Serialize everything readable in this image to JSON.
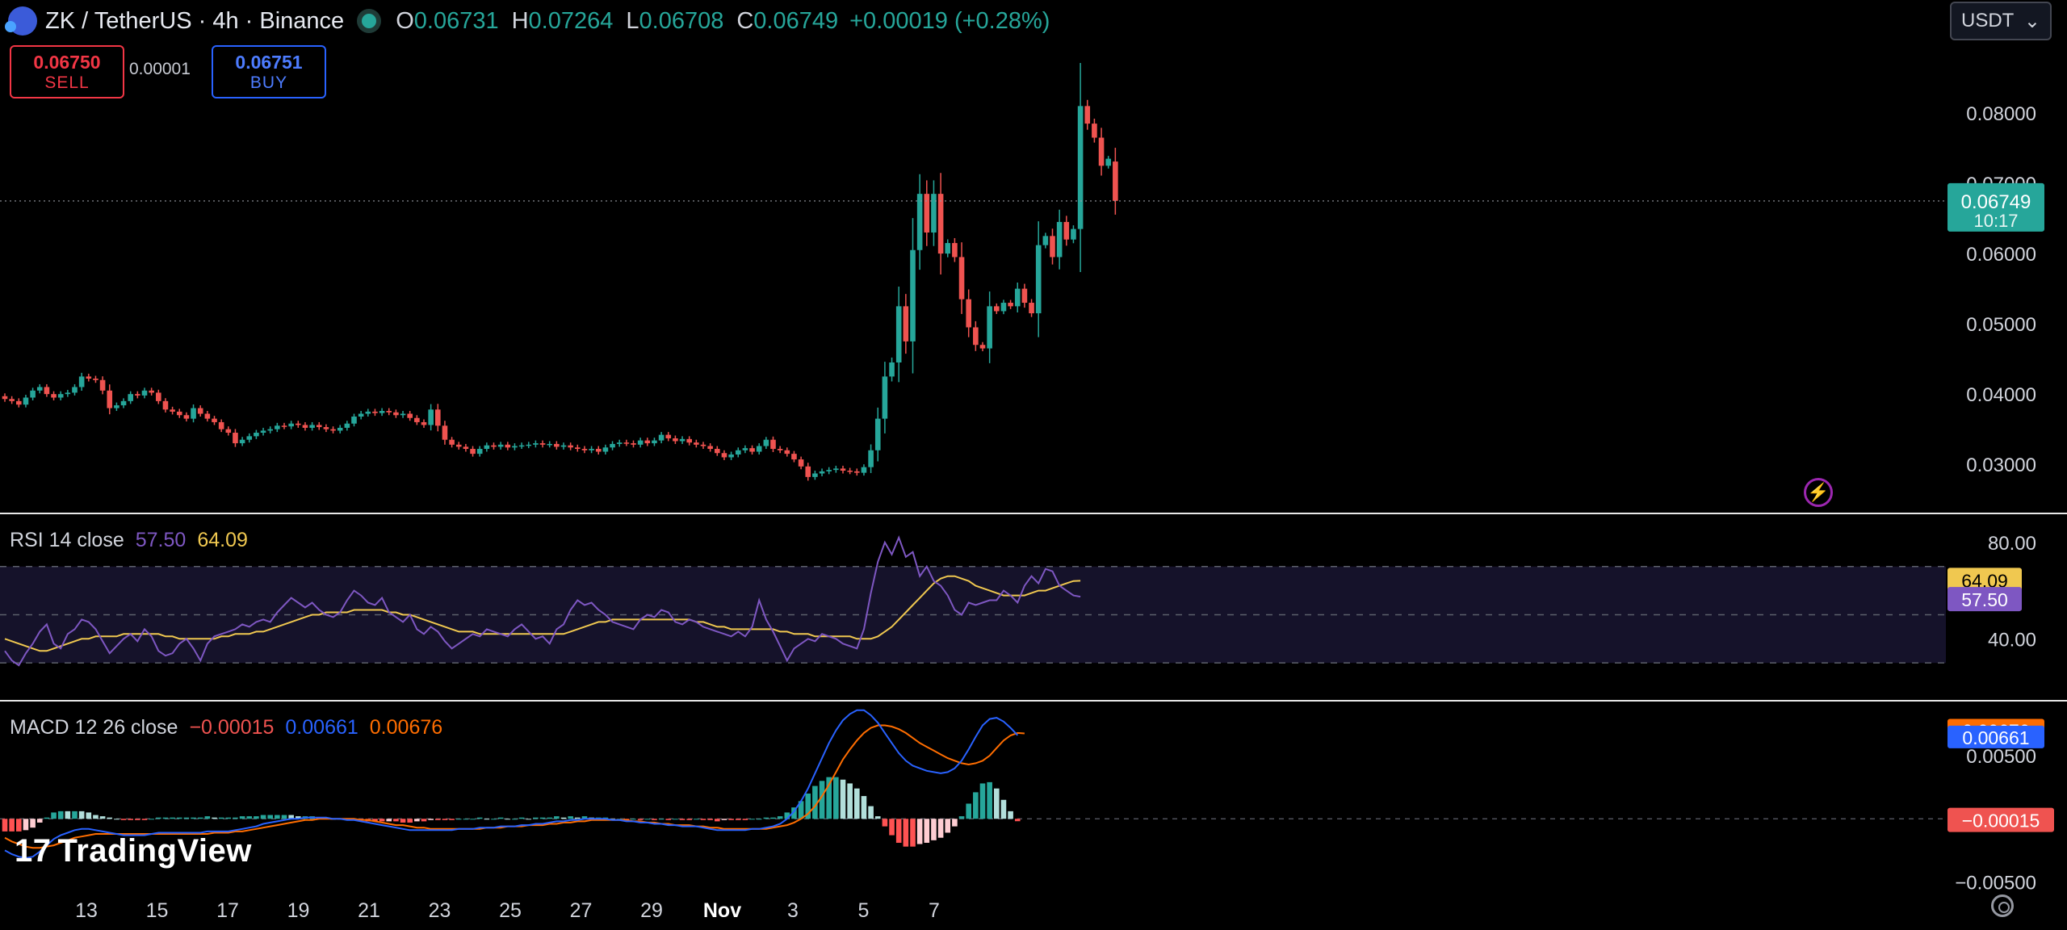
{
  "header": {
    "symbol": "ZK / TetherUS · 4h · Binance",
    "open_label": "O",
    "open": "0.06731",
    "high_label": "H",
    "high": "0.07264",
    "low_label": "L",
    "low": "0.06708",
    "close_label": "C",
    "close": "0.06749",
    "change": "+0.00019 (+0.28%)"
  },
  "trade": {
    "sell_price": "0.06750",
    "sell_label": "SELL",
    "spread": "0.00001",
    "buy_price": "0.06751",
    "buy_label": "BUY"
  },
  "currency_select": "USDT",
  "brand": "TradingView",
  "colors": {
    "up": "#26a69a",
    "down": "#ef5350",
    "rsi": "#7e57c2",
    "rsi_ma": "#f0c850",
    "macd": "#2962ff",
    "signal": "#ff6d00"
  },
  "chart_data": [
    {
      "type": "candlestick",
      "title": "ZK / TetherUS · 4h · Binance",
      "x_ticks": [
        "13",
        "15",
        "17",
        "19",
        "21",
        "23",
        "25",
        "27",
        "29",
        "Nov",
        "3",
        "5",
        "7"
      ],
      "y_ticks": [
        "0.08000",
        "0.07000",
        "0.06000",
        "0.05000",
        "0.04000",
        "0.03000"
      ],
      "ylim": [
        0.0237,
        0.0892
      ],
      "last_price": "0.06749",
      "countdown": "10:17",
      "series_close": [
        0.0393,
        0.039,
        0.0385,
        0.0395,
        0.0405,
        0.041,
        0.04,
        0.0395,
        0.04,
        0.0402,
        0.041,
        0.0425,
        0.0422,
        0.042,
        0.0405,
        0.038,
        0.0384,
        0.039,
        0.04,
        0.0398,
        0.0405,
        0.0402,
        0.039,
        0.0378,
        0.0375,
        0.037,
        0.0365,
        0.038,
        0.0372,
        0.0365,
        0.036,
        0.035,
        0.0345,
        0.033,
        0.0335,
        0.034,
        0.0345,
        0.0348,
        0.035,
        0.0355,
        0.0354,
        0.0358,
        0.0356,
        0.0352,
        0.0356,
        0.0353,
        0.035,
        0.0348,
        0.0352,
        0.0358,
        0.0368,
        0.0372,
        0.0375,
        0.0373,
        0.0376,
        0.0374,
        0.037,
        0.0372,
        0.0366,
        0.036,
        0.0356,
        0.0378,
        0.0355,
        0.0335,
        0.0328,
        0.0325,
        0.0322,
        0.0315,
        0.0322,
        0.0327,
        0.0325,
        0.0328,
        0.0324,
        0.0326,
        0.0327,
        0.0328,
        0.033,
        0.0328,
        0.0329,
        0.0325,
        0.0327,
        0.0324,
        0.0322,
        0.032,
        0.0322,
        0.0318,
        0.0324,
        0.0329,
        0.0331,
        0.033,
        0.0328,
        0.0334,
        0.033,
        0.0334,
        0.0342,
        0.0337,
        0.0333,
        0.0336,
        0.0331,
        0.0328,
        0.0326,
        0.0322,
        0.0316,
        0.031,
        0.0314,
        0.032,
        0.0323,
        0.0318,
        0.0326,
        0.0335,
        0.0322,
        0.032,
        0.0315,
        0.0307,
        0.0297,
        0.0282,
        0.0287,
        0.029,
        0.0292,
        0.0294,
        0.0291,
        0.029,
        0.0288,
        0.0296,
        0.032,
        0.0365,
        0.0425,
        0.0445,
        0.0525,
        0.0475,
        0.0605,
        0.0685,
        0.063,
        0.0685,
        0.06,
        0.0615,
        0.0595,
        0.0535,
        0.0495,
        0.047,
        0.0465,
        0.0525,
        0.0518,
        0.053,
        0.0525,
        0.055,
        0.053,
        0.0515,
        0.0612,
        0.0625,
        0.0595,
        0.0645,
        0.062,
        0.0635,
        0.081,
        0.0785,
        0.0765,
        0.0725,
        0.0735,
        0.0675
      ],
      "series_open": [
        0.0397,
        0.0393,
        0.039,
        0.0385,
        0.0395,
        0.0405,
        0.041,
        0.04,
        0.0395,
        0.04,
        0.0402,
        0.041,
        0.0425,
        0.0422,
        0.042,
        0.0405,
        0.038,
        0.0384,
        0.039,
        0.04,
        0.0398,
        0.0405,
        0.0402,
        0.039,
        0.0378,
        0.0375,
        0.037,
        0.0365,
        0.038,
        0.0372,
        0.0365,
        0.036,
        0.035,
        0.0345,
        0.033,
        0.0335,
        0.034,
        0.0345,
        0.0348,
        0.035,
        0.0355,
        0.0354,
        0.0358,
        0.0356,
        0.0352,
        0.0356,
        0.0353,
        0.035,
        0.0348,
        0.0352,
        0.0358,
        0.0368,
        0.0372,
        0.0375,
        0.0373,
        0.0376,
        0.0374,
        0.037,
        0.0372,
        0.0366,
        0.036,
        0.0356,
        0.0378,
        0.0355,
        0.0335,
        0.0328,
        0.0325,
        0.0322,
        0.0315,
        0.0322,
        0.0327,
        0.0325,
        0.0328,
        0.0324,
        0.0326,
        0.0327,
        0.0328,
        0.033,
        0.0328,
        0.0329,
        0.0325,
        0.0327,
        0.0324,
        0.0322,
        0.032,
        0.0322,
        0.0318,
        0.0324,
        0.0329,
        0.0331,
        0.033,
        0.0328,
        0.0334,
        0.033,
        0.0334,
        0.0342,
        0.0337,
        0.0333,
        0.0336,
        0.0331,
        0.0328,
        0.0326,
        0.0322,
        0.0316,
        0.031,
        0.0314,
        0.032,
        0.0323,
        0.0318,
        0.0326,
        0.0335,
        0.0322,
        0.032,
        0.0315,
        0.0307,
        0.0297,
        0.0282,
        0.0287,
        0.029,
        0.0292,
        0.0294,
        0.0291,
        0.029,
        0.0288,
        0.0296,
        0.032,
        0.0365,
        0.0425,
        0.0445,
        0.0525,
        0.0475,
        0.0605,
        0.0685,
        0.063,
        0.0685,
        0.06,
        0.0615,
        0.0595,
        0.0535,
        0.0495,
        0.047,
        0.0465,
        0.0525,
        0.0518,
        0.053,
        0.0525,
        0.055,
        0.053,
        0.0515,
        0.0612,
        0.0625,
        0.0595,
        0.0645,
        0.062,
        0.0635,
        0.081,
        0.0785,
        0.0765,
        0.0725,
        0.0731
      ]
    },
    {
      "type": "line",
      "title": "RSI 14 close",
      "rsi_value": "57.50",
      "ma_value": "64.09",
      "y_ticks": [
        "80.00",
        "40.00"
      ],
      "ylim": [
        17,
        89
      ],
      "bands": [
        70,
        50,
        30
      ],
      "rsi": [
        35,
        31,
        29,
        34,
        38,
        43,
        46,
        38,
        36,
        42,
        44,
        48,
        47,
        44,
        39,
        34,
        37,
        40,
        42,
        39,
        44,
        41,
        35,
        33,
        34,
        38,
        40,
        36,
        31,
        38,
        41,
        42,
        43,
        44,
        46,
        45,
        47,
        48,
        47,
        51,
        54,
        57,
        55,
        53,
        55,
        52,
        50,
        49,
        51,
        56,
        60,
        58,
        55,
        54,
        57,
        51,
        49,
        47,
        50,
        44,
        42,
        45,
        43,
        39,
        36,
        38,
        40,
        42,
        41,
        44,
        43,
        42,
        41,
        44,
        46,
        43,
        40,
        41,
        38,
        44,
        46,
        52,
        56,
        54,
        55,
        52,
        50,
        47,
        46,
        45,
        44,
        48,
        50,
        49,
        52,
        51,
        47,
        46,
        48,
        47,
        45,
        44,
        43,
        42,
        41,
        43,
        41,
        45,
        56,
        48,
        43,
        37,
        31,
        36,
        38,
        40,
        39,
        42,
        41,
        40,
        38,
        37,
        36,
        44,
        59,
        72,
        80,
        75,
        82,
        74,
        76,
        66,
        70,
        64,
        62,
        58,
        52,
        50,
        55,
        54,
        55,
        56,
        56,
        60,
        58,
        55,
        62,
        66,
        63,
        69,
        68,
        62,
        60,
        58,
        57.5
      ],
      "rsi_ma": [
        40,
        39,
        38,
        37,
        36,
        35,
        35,
        36,
        37,
        38,
        39,
        40,
        40,
        41,
        41,
        41,
        41,
        42,
        42,
        42,
        42,
        42,
        42,
        41,
        41,
        40,
        40,
        40,
        40,
        40,
        40,
        41,
        41,
        42,
        42,
        42,
        43,
        43,
        44,
        45,
        46,
        47,
        48,
        49,
        50,
        50,
        51,
        51,
        51,
        51,
        52,
        52,
        52,
        52,
        52,
        51,
        51,
        50,
        50,
        49,
        48,
        47,
        46,
        45,
        44,
        43,
        43,
        43,
        42,
        42,
        42,
        42,
        42,
        42,
        42,
        42,
        42,
        42,
        42,
        42,
        42,
        43,
        44,
        45,
        46,
        47,
        47,
        48,
        48,
        48,
        48,
        48,
        48,
        48,
        48,
        48,
        48,
        48,
        48,
        47,
        47,
        46,
        45,
        45,
        44,
        44,
        44,
        44,
        44,
        44,
        44,
        43,
        43,
        42,
        42,
        42,
        41,
        41,
        41,
        41,
        41,
        41,
        40,
        40,
        40,
        41,
        43,
        45,
        48,
        51,
        54,
        57,
        60,
        63,
        65,
        66,
        66,
        65,
        64,
        62,
        61,
        60,
        59,
        58,
        58,
        58,
        58,
        59,
        60,
        60,
        61,
        62,
        63,
        64,
        64.09
      ]
    },
    {
      "type": "bar",
      "title": "MACD 12 26 close",
      "hist_value": "−0.00015",
      "macd_value": "0.00661",
      "signal_value": "0.00676",
      "y_ticks": [
        "0.00500",
        "−0.00500"
      ],
      "ylim": [
        -0.0058,
        0.0089
      ],
      "macd": [
        -0.0025,
        -0.0028,
        -0.003,
        -0.0031,
        -0.003,
        -0.0026,
        -0.0021,
        -0.0016,
        -0.0013,
        -0.0011,
        -0.0009,
        -0.0008,
        -0.0008,
        -0.0009,
        -0.001,
        -0.0011,
        -0.0012,
        -0.0013,
        -0.0013,
        -0.0013,
        -0.0013,
        -0.0012,
        -0.0011,
        -0.0011,
        -0.0011,
        -0.0011,
        -0.0011,
        -0.0011,
        -0.0011,
        -0.001,
        -0.001,
        -0.001,
        -0.001,
        -0.0009,
        -0.0008,
        -0.0007,
        -0.0006,
        -0.0004,
        -0.0003,
        -0.0002,
        -0.0001,
        0.0,
        0.0,
        0.0001,
        0.0001,
        0.0001,
        0.0001,
        0.0,
        0.0,
        -0.0001,
        -0.0001,
        -0.0002,
        -0.0003,
        -0.0004,
        -0.0005,
        -0.0006,
        -0.0007,
        -0.0008,
        -0.0009,
        -0.0009,
        -0.0009,
        -0.0009,
        -0.0009,
        -0.0009,
        -0.0009,
        -0.0008,
        -0.0008,
        -0.0008,
        -0.0007,
        -0.0007,
        -0.0007,
        -0.0006,
        -0.0006,
        -0.0006,
        -0.0005,
        -0.0005,
        -0.0004,
        -0.0004,
        -0.0003,
        -0.0002,
        -0.0002,
        -0.0001,
        -0.0001,
        0.0,
        0.0,
        0.0,
        0.0,
        -0.0001,
        -0.0001,
        -0.0002,
        -0.0002,
        -0.0003,
        -0.0003,
        -0.0004,
        -0.0004,
        -0.0005,
        -0.0005,
        -0.0006,
        -0.0006,
        -0.0006,
        -0.0007,
        -0.0008,
        -0.0009,
        -0.0009,
        -0.0009,
        -0.0009,
        -0.0009,
        -0.0008,
        -0.0008,
        -0.0007,
        -0.0006,
        -0.0004,
        0.0,
        0.0006,
        0.0014,
        0.0024,
        0.0036,
        0.0048,
        0.006,
        0.007,
        0.0078,
        0.0083,
        0.0086,
        0.0086,
        0.0082,
        0.0076,
        0.0068,
        0.006,
        0.0052,
        0.0046,
        0.0042,
        0.004,
        0.0038,
        0.0037,
        0.0036,
        0.0037,
        0.004,
        0.0046,
        0.0055,
        0.0065,
        0.0074,
        0.0079,
        0.008,
        0.0077,
        0.0072,
        0.00661
      ],
      "signal": [
        -0.0015,
        -0.0018,
        -0.002,
        -0.0022,
        -0.0023,
        -0.0023,
        -0.0022,
        -0.0021,
        -0.0019,
        -0.0017,
        -0.0015,
        -0.0014,
        -0.0013,
        -0.0012,
        -0.0012,
        -0.0012,
        -0.0012,
        -0.0012,
        -0.0012,
        -0.0012,
        -0.0012,
        -0.0012,
        -0.0012,
        -0.0012,
        -0.0012,
        -0.0012,
        -0.0012,
        -0.0012,
        -0.0012,
        -0.0012,
        -0.0011,
        -0.0011,
        -0.0011,
        -0.001,
        -0.001,
        -0.0009,
        -0.0008,
        -0.0007,
        -0.0006,
        -0.0005,
        -0.0004,
        -0.0003,
        -0.0002,
        -0.0001,
        -0.0001,
        0.0,
        0.0,
        0.0,
        0.0,
        0.0,
        0.0,
        -0.0001,
        -0.0001,
        -0.0002,
        -0.0003,
        -0.0004,
        -0.0005,
        -0.0005,
        -0.0006,
        -0.0007,
        -0.0007,
        -0.0008,
        -0.0008,
        -0.0008,
        -0.0008,
        -0.0008,
        -0.0008,
        -0.0008,
        -0.0008,
        -0.0007,
        -0.0007,
        -0.0007,
        -0.0006,
        -0.0006,
        -0.0006,
        -0.0005,
        -0.0005,
        -0.0005,
        -0.0004,
        -0.0004,
        -0.0003,
        -0.0003,
        -0.0002,
        -0.0002,
        -0.0001,
        -0.0001,
        -0.0001,
        -0.0001,
        -0.0001,
        -0.0001,
        -0.0002,
        -0.0002,
        -0.0003,
        -0.0003,
        -0.0004,
        -0.0004,
        -0.0005,
        -0.0005,
        -0.0005,
        -0.0006,
        -0.0006,
        -0.0007,
        -0.0007,
        -0.0008,
        -0.0008,
        -0.0008,
        -0.0008,
        -0.0008,
        -0.0008,
        -0.0008,
        -0.0007,
        -0.0006,
        -0.0005,
        -0.0003,
        0.0,
        0.0004,
        0.001,
        0.0018,
        0.0027,
        0.0037,
        0.0047,
        0.0055,
        0.0062,
        0.0068,
        0.0072,
        0.0074,
        0.0074,
        0.0073,
        0.0071,
        0.0068,
        0.0064,
        0.006,
        0.0057,
        0.0054,
        0.0051,
        0.0048,
        0.0046,
        0.0044,
        0.0043,
        0.0044,
        0.0046,
        0.005,
        0.0056,
        0.0062,
        0.0066,
        0.0068,
        0.00676
      ]
    }
  ]
}
